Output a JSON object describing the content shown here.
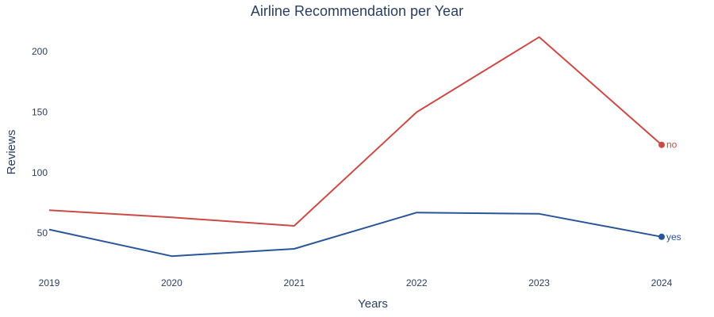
{
  "chart_data": {
    "type": "line",
    "title": "Airline Recommendation per Year",
    "xlabel": "Years",
    "ylabel": "Reviews",
    "x": [
      2019,
      2020,
      2021,
      2022,
      2023,
      2024
    ],
    "ylim": [
      20,
      225
    ],
    "yticks": [
      50,
      100,
      150,
      200
    ],
    "grid": false,
    "legend": "end-of-line labels",
    "series": [
      {
        "name": "no",
        "color": "#c94a46",
        "values": [
          69,
          63,
          56,
          150,
          212,
          123
        ]
      },
      {
        "name": "yes",
        "color": "#285597",
        "values": [
          53,
          31,
          37,
          67,
          66,
          47
        ]
      }
    ]
  }
}
